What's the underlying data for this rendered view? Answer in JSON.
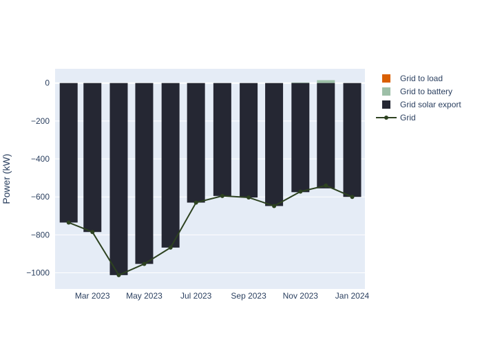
{
  "chart_data": {
    "type": "bar",
    "ylabel": "Power (kW)",
    "xlabel": "",
    "title": "",
    "ylim": [
      -1085,
      75
    ],
    "grid": true,
    "legend_position": "right",
    "x": [
      "2023-02-01",
      "2023-03-01",
      "2023-04-01",
      "2023-05-01",
      "2023-06-01",
      "2023-07-01",
      "2023-08-01",
      "2023-09-01",
      "2023-10-01",
      "2023-11-01",
      "2023-12-01",
      "2024-01-01"
    ],
    "x_tick_labels": [
      "Mar 2023",
      "May 2023",
      "Jul 2023",
      "Sep 2023",
      "Nov 2023",
      "Jan 2024"
    ],
    "x_tick_dates": [
      "2023-03-01",
      "2023-05-01",
      "2023-07-01",
      "2023-09-01",
      "2023-11-01",
      "2024-01-01"
    ],
    "y_ticks": [
      0,
      -200,
      -400,
      -600,
      -800,
      -1000
    ],
    "y_tick_labels": [
      "0",
      "−200",
      "−400",
      "−600",
      "−800",
      "−1000"
    ],
    "series": [
      {
        "name": "Grid to load",
        "kind": "bar",
        "color": "#d95f02",
        "values": [
          0,
          0,
          0,
          0,
          0,
          0,
          0,
          0,
          0,
          0,
          0,
          0
        ]
      },
      {
        "name": "Grid to battery",
        "kind": "bar",
        "color": "#9dbfa7",
        "values": [
          0,
          0,
          0,
          0,
          0,
          0,
          0,
          0,
          0,
          3,
          15,
          0
        ]
      },
      {
        "name": "Grid solar export",
        "kind": "bar",
        "color": "#252733",
        "values": [
          -735,
          -785,
          -1012,
          -953,
          -867,
          -630,
          -595,
          -603,
          -648,
          -575,
          -555,
          -600
        ]
      },
      {
        "name": "Grid",
        "kind": "line",
        "color": "#2d4220",
        "values": [
          -735,
          -785,
          -1012,
          -953,
          -867,
          -630,
          -595,
          -603,
          -648,
          -572,
          -540,
          -600
        ]
      }
    ]
  }
}
